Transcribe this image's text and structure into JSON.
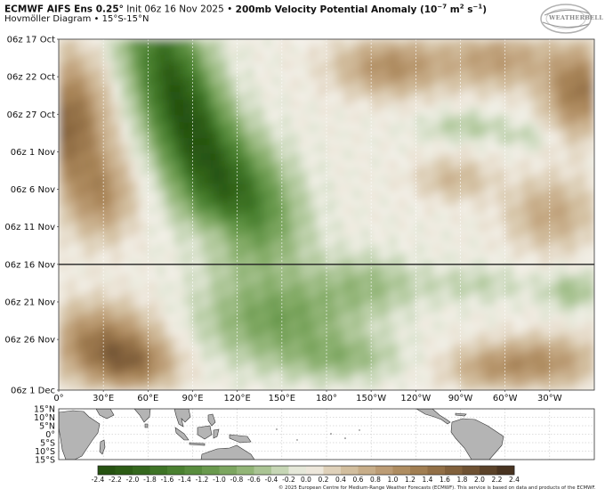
{
  "header": {
    "title_prefix": "ECMWF AIFS Ens 0.25°",
    "title_init": " Init 06z 16 Nov 2025 • ",
    "title_field": "200mb Velocity Potential Anomaly (10",
    "title_exp": "−7",
    "title_units_mid": " m",
    "title_units_exp": "2",
    "title_units_end": " s",
    "title_units_exp2": "−1",
    "title_close": ")",
    "subtitle": "Hovmöller Diagram • 15°S-15°N"
  },
  "logo": {
    "text": "WEATHERBELL",
    "icon": "weatherbell-globe-icon"
  },
  "chart_data": {
    "type": "heatmap",
    "title": "200mb Velocity Potential Anomaly (10^-7 m^2 s^-1)",
    "subtitle": "Hovmöller Diagram • 15°S-15°N",
    "y_ticks": [
      "06z 17 Oct",
      "06z 22 Oct",
      "06z 27 Oct",
      "06z 1 Nov",
      "06z 6 Nov",
      "06z 11 Nov",
      "06z 16 Nov",
      "06z 21 Nov",
      "06z 26 Nov",
      "06z 1 Dec"
    ],
    "x_ticks": [
      "0°",
      "30°E",
      "60°E",
      "90°E",
      "120°E",
      "150°E",
      "180°",
      "150°W",
      "120°W",
      "90°W",
      "60°W",
      "30°W"
    ],
    "x_range": [
      "0°",
      "360°"
    ],
    "y_range": [
      "06z 17 Oct",
      "06z 3 Dec"
    ],
    "init_line": "06z 16 Nov",
    "grid": true,
    "latitude_ticks": [
      "15°N",
      "10°N",
      "5°N",
      "0°",
      "5°S",
      "10°S",
      "15°S"
    ],
    "colorbar": {
      "ticks": [
        "-2.4",
        "-2.2",
        "-2.0",
        "-1.8",
        "-1.6",
        "-1.4",
        "-1.2",
        "-1.0",
        "-0.8",
        "-0.6",
        "-0.4",
        "-0.2",
        "0.0",
        "0.2",
        "0.4",
        "0.6",
        "0.8",
        "1.0",
        "1.2",
        "1.4",
        "1.6",
        "1.8",
        "2.0",
        "2.2",
        "2.4"
      ],
      "negative_color": "#234d0e",
      "neutral_color": "#f4f1ea",
      "positive_color": "#3e2c1c"
    }
  },
  "copyright": "© 2025 European Centre for Medium-Range Weather Forecasts (ECMWF). This service is based on data and products of the ECMWF."
}
